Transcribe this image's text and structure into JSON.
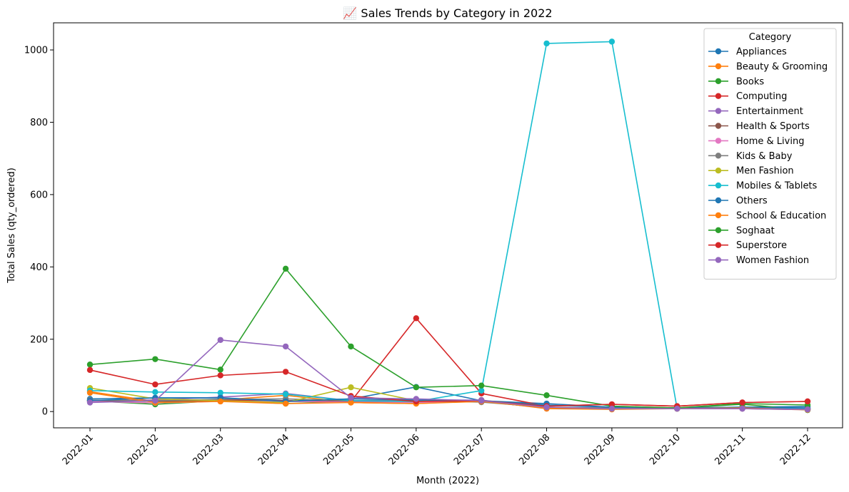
{
  "chart_data": {
    "type": "line",
    "title": "📈 Sales Trends by Category in 2022",
    "xlabel": "Month (2022)",
    "ylabel": "Total Sales (qty_ordered)",
    "categories": [
      "2022-01",
      "2022-02",
      "2022-03",
      "2022-04",
      "2022-05",
      "2022-06",
      "2022-07",
      "2022-08",
      "2022-09",
      "2022-10",
      "2022-11",
      "2022-12"
    ],
    "ylim": [
      -45,
      1075
    ],
    "yticks": [
      0,
      200,
      400,
      600,
      800,
      1000
    ],
    "grid": false,
    "legend": {
      "title": "Category",
      "placement": "top-right"
    },
    "series": [
      {
        "name": "Appliances",
        "color": "#1f77b4",
        "values": [
          35,
          38,
          38,
          30,
          35,
          68,
          30,
          22,
          12,
          10,
          12,
          14
        ]
      },
      {
        "name": "Beauty & Grooming",
        "color": "#ff7f0e",
        "values": [
          55,
          28,
          32,
          45,
          25,
          22,
          30,
          8,
          6,
          8,
          8,
          5
        ]
      },
      {
        "name": "Books",
        "color": "#2ca02c",
        "values": [
          30,
          20,
          30,
          22,
          28,
          25,
          28,
          10,
          8,
          10,
          20,
          4
        ]
      },
      {
        "name": "Computing",
        "color": "#d62728",
        "values": [
          30,
          32,
          32,
          30,
          28,
          258,
          50,
          15,
          20,
          15,
          25,
          28
        ]
      },
      {
        "name": "Entertainment",
        "color": "#9467bd",
        "values": [
          28,
          32,
          40,
          50,
          30,
          32,
          32,
          10,
          8,
          8,
          8,
          5
        ]
      },
      {
        "name": "Health & Sports",
        "color": "#8c564b",
        "values": [
          30,
          28,
          30,
          28,
          28,
          25,
          28,
          10,
          8,
          8,
          10,
          8
        ]
      },
      {
        "name": "Home & Living",
        "color": "#e377c2",
        "values": [
          28,
          24,
          28,
          28,
          26,
          25,
          28,
          10,
          8,
          8,
          10,
          8
        ]
      },
      {
        "name": "Kids & Baby",
        "color": "#7f7f7f",
        "values": [
          32,
          30,
          34,
          35,
          30,
          30,
          26,
          12,
          10,
          10,
          10,
          8
        ]
      },
      {
        "name": "Men Fashion",
        "color": "#bcbd22",
        "values": [
          65,
          35,
          30,
          25,
          67,
          30,
          30,
          12,
          8,
          8,
          10,
          6
        ]
      },
      {
        "name": "Mobiles & Tablets",
        "color": "#17becf",
        "values": [
          58,
          54,
          52,
          48,
          30,
          28,
          58,
          1018,
          1023,
          8,
          10,
          8
        ]
      },
      {
        "name": "Others",
        "color": "#1f77b4",
        "values": [
          30,
          38,
          38,
          28,
          35,
          32,
          30,
          18,
          12,
          10,
          12,
          10
        ]
      },
      {
        "name": "School & Education",
        "color": "#ff7f0e",
        "values": [
          52,
          25,
          28,
          22,
          25,
          22,
          28,
          10,
          8,
          8,
          10,
          5
        ]
      },
      {
        "name": "Soghaat",
        "color": "#2ca02c",
        "values": [
          130,
          145,
          116,
          395,
          180,
          67,
          72,
          45,
          15,
          10,
          22,
          18
        ]
      },
      {
        "name": "Superstore",
        "color": "#d62728",
        "values": [
          115,
          75,
          100,
          110,
          43,
          28,
          30,
          15,
          20,
          15,
          25,
          28
        ]
      },
      {
        "name": "Women Fashion",
        "color": "#9467bd",
        "values": [
          25,
          30,
          198,
          180,
          38,
          35,
          30,
          12,
          8,
          8,
          8,
          6
        ]
      }
    ]
  }
}
